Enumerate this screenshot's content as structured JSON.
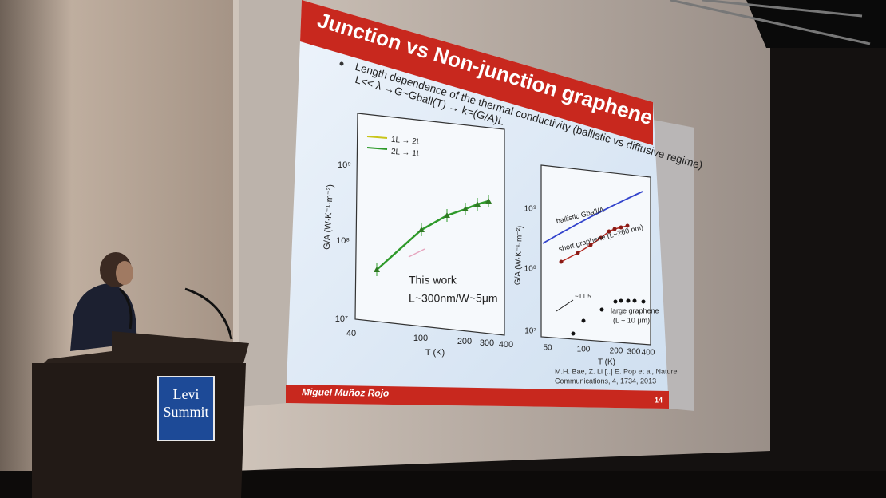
{
  "slide": {
    "title": "Junction vs Non-junction graphene",
    "bullet": "Length dependence of the thermal conductivity (ballistic vs diffusive regime)",
    "bullet_2": "L<< λ →G~Gball(T) → k=(G/A)L",
    "author": "Miguel Muñoz Rojo",
    "page": "14"
  },
  "left_plot": {
    "legend": [
      "1L → 2L",
      "2L → 1L"
    ],
    "y_label": "G/A (W·K⁻¹·m⁻²)",
    "x_label": "T (K)",
    "y_ticks": [
      "10⁷",
      "10⁸",
      "10⁹"
    ],
    "x_ticks": [
      "40",
      "100",
      "200",
      "300",
      "400"
    ],
    "annotation": [
      "This work",
      "L~300nm/W~5μm"
    ]
  },
  "right_plot": {
    "y_label": "G/A (W·K⁻¹·m⁻²)",
    "x_label": "T (K)",
    "y_ticks": [
      "10⁷",
      "10⁸",
      "10⁹"
    ],
    "x_ticks": [
      "50",
      "100",
      "200",
      "300",
      "400"
    ],
    "labels": [
      "ballistic Gball/A",
      "short graphene (L~260 nm)",
      "~T1.5",
      "large graphene",
      "(L ~ 10 μm)"
    ],
    "citation": [
      "M.H. Bae, Z. Li [..] E. Pop et al, Nature",
      "Communications, 4, 1734, 2013"
    ]
  },
  "podium": {
    "sign": [
      "Levi",
      "Summit"
    ]
  }
}
